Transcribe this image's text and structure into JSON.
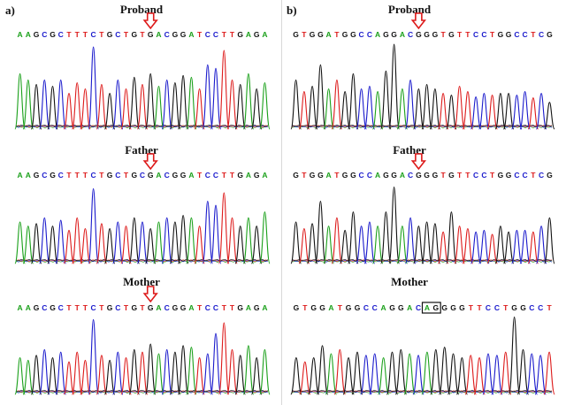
{
  "figure": {
    "panel_a_label": "a)",
    "panel_b_label": "b)",
    "colors": {
      "A": "#1aa01a",
      "C": "#1a1acc",
      "G": "#111111",
      "T": "#dd1a1a",
      "arrow": "#dd1a1a",
      "box": "#1aa01a"
    },
    "panels": [
      {
        "id": "a",
        "traces": [
          {
            "title": "Proband",
            "sequence": "AAGCGCTTTCTGCTGTGACGGATCCTTGAGA",
            "marker": "arrow",
            "marker_index": 16,
            "peaks": [
              0.62,
              0.55,
              0.5,
              0.55,
              0.48,
              0.55,
              0.4,
              0.52,
              0.45,
              0.92,
              0.5,
              0.4,
              0.55,
              0.45,
              0.58,
              0.5,
              0.62,
              0.48,
              0.55,
              0.52,
              0.6,
              0.58,
              0.45,
              0.72,
              0.68,
              0.88,
              0.55,
              0.5,
              0.62,
              0.45,
              0.52
            ]
          },
          {
            "title": "Father",
            "sequence": "AAGCGCTTTCTGCTGCGACGGATCCTTGAGA",
            "marker": "arrow",
            "marker_index": 16,
            "peaks": [
              0.5,
              0.45,
              0.48,
              0.55,
              0.45,
              0.52,
              0.4,
              0.55,
              0.42,
              0.9,
              0.48,
              0.42,
              0.5,
              0.45,
              0.55,
              0.5,
              0.42,
              0.5,
              0.55,
              0.5,
              0.58,
              0.55,
              0.45,
              0.75,
              0.7,
              0.85,
              0.55,
              0.45,
              0.55,
              0.45,
              0.62
            ]
          },
          {
            "title": "Mother",
            "sequence": "AAGCGCTTTCTGCTGTGACGGATCCTTGAGA",
            "marker": "arrow",
            "marker_index": 16,
            "peaks": [
              0.45,
              0.42,
              0.48,
              0.55,
              0.45,
              0.52,
              0.4,
              0.52,
              0.42,
              0.92,
              0.48,
              0.42,
              0.52,
              0.45,
              0.55,
              0.52,
              0.62,
              0.5,
              0.55,
              0.52,
              0.6,
              0.58,
              0.45,
              0.5,
              0.75,
              0.88,
              0.55,
              0.48,
              0.6,
              0.45,
              0.55
            ]
          }
        ]
      },
      {
        "id": "b",
        "traces": [
          {
            "title": "Proband",
            "sequence": "GTGGATGGCCAGGACGGGTGTTCCTGGCCTCG",
            "marker": "arrow",
            "marker_index": 15,
            "peaks": [
              0.55,
              0.42,
              0.48,
              0.72,
              0.45,
              0.55,
              0.42,
              0.62,
              0.45,
              0.48,
              0.42,
              0.65,
              0.95,
              0.45,
              0.55,
              0.45,
              0.5,
              0.45,
              0.4,
              0.38,
              0.48,
              0.42,
              0.36,
              0.4,
              0.38,
              0.4,
              0.4,
              0.38,
              0.42,
              0.35,
              0.4,
              0.3
            ]
          },
          {
            "title": "Father",
            "sequence": "GTGGATGGCCAGGACGGGTGTTCCTGGCCTCG",
            "marker": "arrow",
            "marker_index": 15,
            "peaks": [
              0.5,
              0.42,
              0.48,
              0.75,
              0.45,
              0.55,
              0.4,
              0.62,
              0.45,
              0.5,
              0.45,
              0.62,
              0.92,
              0.45,
              0.55,
              0.45,
              0.5,
              0.48,
              0.38,
              0.62,
              0.45,
              0.42,
              0.38,
              0.4,
              0.35,
              0.45,
              0.38,
              0.4,
              0.4,
              0.38,
              0.45,
              0.55
            ]
          },
          {
            "title": "Mother",
            "sequence": "GTGGATGGCCAGGACAGGGGTTCCTGGCCT",
            "marker": "box",
            "marker_index": 15,
            "peaks": [
              0.45,
              0.4,
              0.45,
              0.6,
              0.5,
              0.55,
              0.45,
              0.52,
              0.48,
              0.5,
              0.45,
              0.52,
              0.55,
              0.5,
              0.48,
              0.52,
              0.55,
              0.58,
              0.5,
              0.45,
              0.48,
              0.45,
              0.5,
              0.48,
              0.52,
              0.95,
              0.55,
              0.5,
              0.48,
              0.52
            ]
          }
        ]
      }
    ]
  }
}
